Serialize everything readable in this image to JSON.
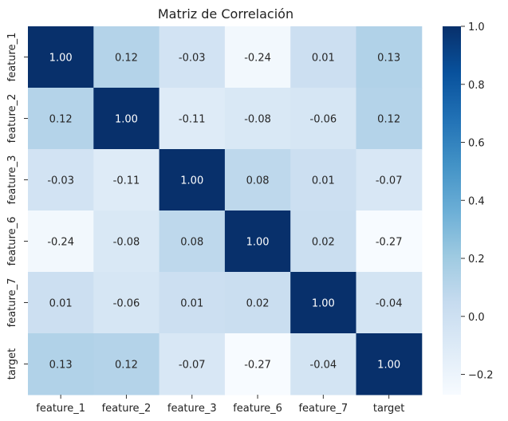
{
  "chart_data": {
    "type": "heatmap",
    "title": "Matriz de Correlación",
    "x_labels": [
      "feature_1",
      "feature_2",
      "feature_3",
      "feature_6",
      "feature_7",
      "target"
    ],
    "y_labels": [
      "feature_1",
      "feature_2",
      "feature_3",
      "feature_6",
      "feature_7",
      "target"
    ],
    "values": [
      [
        1.0,
        0.12,
        -0.03,
        -0.24,
        0.01,
        0.13
      ],
      [
        0.12,
        1.0,
        -0.11,
        -0.08,
        -0.06,
        0.12
      ],
      [
        -0.03,
        -0.11,
        1.0,
        0.08,
        0.01,
        -0.07
      ],
      [
        -0.24,
        -0.08,
        0.08,
        1.0,
        0.02,
        -0.27
      ],
      [
        0.01,
        -0.06,
        0.01,
        0.02,
        1.0,
        -0.04
      ],
      [
        0.13,
        0.12,
        -0.07,
        -0.27,
        -0.04,
        1.0
      ]
    ],
    "value_format": "0.00",
    "colormap": "Blues",
    "colorbar": {
      "range": [
        -0.27,
        1.0
      ],
      "ticks": [
        "−0.2",
        "0.0",
        "0.2",
        "0.4",
        "0.6",
        "0.8",
        "1.0"
      ],
      "tick_values": [
        -0.2,
        0.0,
        0.2,
        0.4,
        0.6,
        0.8,
        1.0
      ]
    },
    "grid": false,
    "legend": "colorbar-right"
  }
}
